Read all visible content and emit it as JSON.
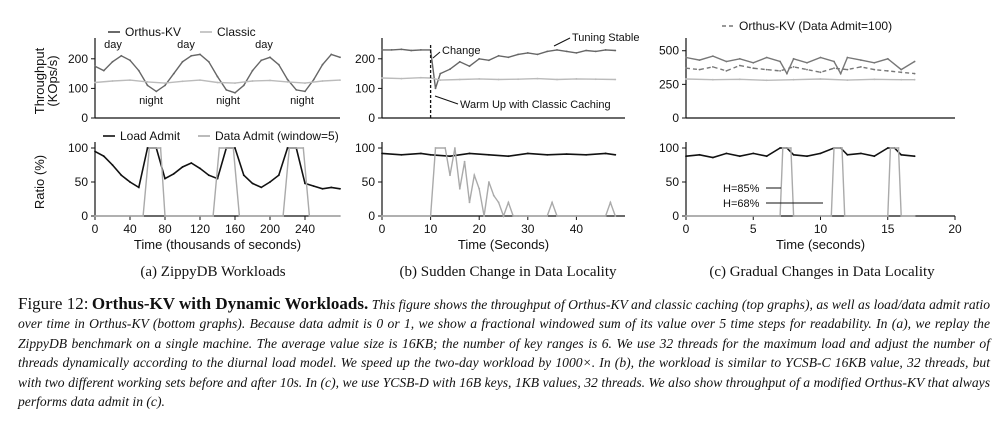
{
  "chart_data": [
    {
      "type": "line",
      "panel": "top-a",
      "ylabel": "Throughput (KOps/s)",
      "ylim": [
        0,
        250
      ],
      "yticks": [
        0,
        100,
        200
      ],
      "xlim": [
        0,
        280
      ],
      "legend": [
        "Orthus-KV",
        "Classic"
      ],
      "legend_position": "top",
      "annotations": [
        "day",
        "day",
        "day",
        "night",
        "night",
        "night"
      ],
      "series": [
        {
          "name": "Orthus-KV",
          "color": "#666666",
          "x": [
            0,
            10,
            20,
            30,
            40,
            50,
            60,
            70,
            80,
            90,
            100,
            110,
            120,
            130,
            140,
            150,
            160,
            170,
            180,
            190,
            200,
            210,
            220,
            230,
            240,
            250,
            260,
            270,
            280
          ],
          "y": [
            175,
            160,
            190,
            210,
            195,
            160,
            110,
            90,
            110,
            150,
            190,
            210,
            215,
            190,
            140,
            95,
            85,
            110,
            160,
            195,
            205,
            180,
            130,
            95,
            90,
            130,
            180,
            215,
            205
          ]
        },
        {
          "name": "Classic",
          "color": "#bbbbbb",
          "x": [
            0,
            20,
            40,
            60,
            80,
            100,
            120,
            140,
            160,
            180,
            200,
            220,
            240,
            260,
            280
          ],
          "y": [
            120,
            125,
            128,
            122,
            118,
            124,
            128,
            120,
            118,
            125,
            127,
            122,
            118,
            125,
            128
          ]
        }
      ]
    },
    {
      "type": "line",
      "panel": "bottom-a",
      "ylabel": "Ratio (%)",
      "xlabel": "Time (thousands of seconds)",
      "ylim": [
        0,
        100
      ],
      "yticks": [
        0,
        50,
        100
      ],
      "xlim": [
        0,
        280
      ],
      "xticks": [
        0,
        40,
        80,
        120,
        160,
        200,
        240
      ],
      "legend": [
        "Load Admit",
        "Data Admit (window=5)"
      ],
      "legend_position": "top",
      "series": [
        {
          "name": "Load Admit",
          "color": "#111111",
          "x": [
            0,
            10,
            20,
            30,
            40,
            50,
            60,
            70,
            80,
            90,
            100,
            110,
            120,
            130,
            140,
            150,
            160,
            170,
            180,
            190,
            200,
            210,
            220,
            230,
            240,
            250,
            260,
            270,
            280
          ],
          "y": [
            95,
            88,
            75,
            60,
            50,
            42,
            100,
            100,
            55,
            62,
            72,
            78,
            70,
            60,
            55,
            100,
            100,
            60,
            48,
            42,
            50,
            60,
            100,
            100,
            48,
            44,
            40,
            42,
            40
          ]
        },
        {
          "name": "Data Admit (window=5)",
          "color": "#aaaaaa",
          "x": [
            0,
            55,
            62,
            70,
            75,
            80,
            135,
            142,
            150,
            158,
            165,
            215,
            222,
            230,
            238,
            245,
            280
          ],
          "y": [
            0,
            0,
            100,
            100,
            100,
            0,
            0,
            100,
            100,
            100,
            0,
            0,
            100,
            100,
            100,
            0,
            0
          ]
        }
      ]
    },
    {
      "type": "line",
      "panel": "top-b",
      "ylim": [
        0,
        250
      ],
      "yticks": [
        0,
        100,
        200
      ],
      "xlim": [
        0,
        50
      ],
      "annotations": [
        "Change",
        "Tuning Stable",
        "Warm Up with Classic Caching"
      ],
      "series": [
        {
          "name": "Orthus-KV",
          "color": "#666666",
          "x": [
            0,
            2,
            4,
            6,
            8,
            10,
            11,
            12,
            14,
            16,
            18,
            20,
            22,
            24,
            26,
            28,
            30,
            32,
            34,
            36,
            38,
            40,
            42,
            44,
            46,
            48
          ],
          "y": [
            230,
            230,
            232,
            228,
            230,
            230,
            100,
            150,
            165,
            190,
            175,
            200,
            195,
            210,
            205,
            215,
            220,
            215,
            225,
            230,
            225,
            220,
            228,
            225,
            230,
            228
          ]
        },
        {
          "name": "Classic",
          "color": "#bbbbbb",
          "x": [
            0,
            4,
            8,
            10,
            12,
            16,
            20,
            24,
            28,
            32,
            36,
            40,
            44,
            48
          ],
          "y": [
            135,
            133,
            136,
            135,
            128,
            130,
            132,
            130,
            131,
            133,
            130,
            132,
            131,
            130
          ]
        }
      ]
    },
    {
      "type": "line",
      "panel": "bottom-b",
      "xlabel": "Time (Seconds)",
      "ylim": [
        0,
        100
      ],
      "yticks": [
        0,
        50,
        100
      ],
      "xlim": [
        0,
        50
      ],
      "xticks": [
        0,
        10,
        20,
        30,
        40
      ],
      "series": [
        {
          "name": "Load Admit",
          "color": "#111111",
          "x": [
            0,
            4,
            8,
            10,
            14,
            18,
            22,
            26,
            30,
            34,
            38,
            42,
            46,
            48
          ],
          "y": [
            92,
            90,
            92,
            90,
            88,
            92,
            90,
            88,
            92,
            90,
            91,
            90,
            92,
            90
          ]
        },
        {
          "name": "Data Admit (window=5)",
          "color": "#aaaaaa",
          "x": [
            0,
            10,
            11,
            13,
            14,
            15,
            16,
            17,
            18,
            19,
            20,
            21,
            22,
            23,
            24,
            25,
            26,
            27,
            28,
            30,
            34,
            35,
            36,
            40,
            46,
            47,
            48
          ],
          "y": [
            0,
            0,
            100,
            100,
            60,
            100,
            40,
            80,
            20,
            60,
            40,
            0,
            50,
            30,
            20,
            0,
            20,
            0,
            0,
            0,
            0,
            20,
            0,
            0,
            0,
            20,
            0
          ]
        }
      ]
    },
    {
      "type": "line",
      "panel": "top-c",
      "ylim": [
        0,
        550
      ],
      "yticks": [
        0,
        250,
        500
      ],
      "xlim": [
        0,
        20
      ],
      "legend": [
        "Orthus-KV (Data Admit=100)"
      ],
      "legend_position": "top",
      "series": [
        {
          "name": "Orthus-KV",
          "color": "#777777",
          "x": [
            0,
            1,
            2,
            3,
            4,
            5,
            6,
            7,
            7.5,
            8,
            9,
            10,
            11,
            11.5,
            12,
            13,
            14,
            15,
            16,
            17
          ],
          "y": [
            450,
            430,
            460,
            420,
            440,
            410,
            450,
            420,
            330,
            440,
            410,
            450,
            420,
            330,
            450,
            430,
            410,
            440,
            360,
            420
          ]
        },
        {
          "name": "Orthus-KV (Data Admit=100)",
          "color": "#777777",
          "x": [
            0,
            1,
            2,
            3,
            4,
            5,
            6,
            7,
            8,
            9,
            10,
            11,
            12,
            13,
            14,
            15,
            16,
            17
          ],
          "y": [
            370,
            360,
            380,
            350,
            390,
            370,
            360,
            350,
            380,
            360,
            340,
            370,
            360,
            380,
            360,
            350,
            340,
            330
          ]
        },
        {
          "name": "Classic",
          "color": "#bbbbbb",
          "x": [
            0,
            2,
            4,
            6,
            8,
            10,
            12,
            14,
            16,
            17
          ],
          "y": [
            290,
            285,
            288,
            280,
            285,
            290,
            282,
            288,
            285,
            285
          ]
        }
      ]
    },
    {
      "type": "line",
      "panel": "bottom-c",
      "xlabel": "Time (seconds)",
      "ylim": [
        0,
        100
      ],
      "yticks": [
        0,
        50,
        100
      ],
      "xlim": [
        0,
        20
      ],
      "xticks": [
        0,
        5,
        10,
        15,
        20
      ],
      "annotations": [
        "H=85%",
        "H=68%"
      ],
      "series": [
        {
          "name": "Load Admit",
          "color": "#111111",
          "x": [
            0,
            1,
            2,
            3,
            4,
            5,
            6,
            7,
            7.5,
            8,
            9,
            10,
            11,
            11.5,
            12,
            13,
            14,
            15,
            15.5,
            16,
            17
          ],
          "y": [
            88,
            90,
            86,
            92,
            88,
            92,
            88,
            100,
            100,
            90,
            88,
            92,
            100,
            100,
            90,
            92,
            88,
            100,
            100,
            90,
            88
          ]
        },
        {
          "name": "Data Admit (window=5)",
          "color": "#aaaaaa",
          "x": [
            0,
            7,
            7.2,
            7.8,
            8,
            10.8,
            11,
            11.6,
            11.8,
            15,
            15.2,
            15.8,
            16,
            17
          ],
          "y": [
            0,
            0,
            100,
            100,
            0,
            0,
            100,
            100,
            0,
            0,
            100,
            100,
            0,
            0
          ]
        }
      ]
    }
  ],
  "subcaptions": [
    "(a) ZippyDB Workloads",
    "(b) Sudden Change in Data Locality",
    "(c) Gradual Changes in Data Locality"
  ],
  "caption": {
    "label": "Figure 12:",
    "title": "Orthus-KV with Dynamic Workloads.",
    "body": "This figure shows the throughput of Orthus-KV and classic caching (top graphs), as well as load/data admit ratio over time in Orthus-KV (bottom graphs). Because data admit is 0 or 1, we show a fractional windowed sum of its value over 5 time steps for readability. In (a), we replay the ZippyDB benchmark on a single machine. The average value size is 16KB; the number of key ranges is 6. We use 32 threads for the maximum load and adjust the number of threads dynamically according to the diurnal load model. We speed up the two-day workload by 1000×. In (b), the workload is similar to YCSB-C 16KB value, 32 threads, but with two different working sets before and after 10s. In (c), we use YCSB-D with 16B keys, 1KB values, 32 threads. We also show throughput of a modified Orthus-KV that always performs data admit in (c)."
  }
}
